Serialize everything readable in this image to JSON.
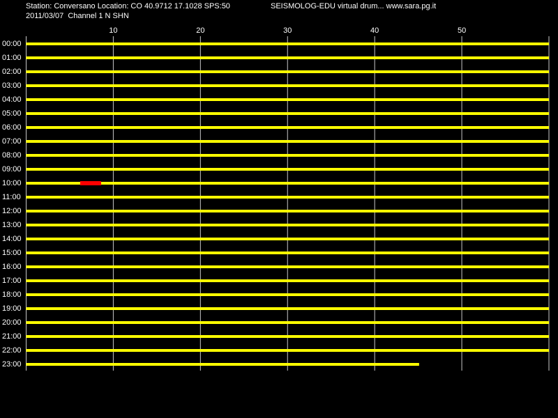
{
  "chart_data": {
    "type": "helicorder",
    "title": "Station: Conversano Location: CO 40.9712 17.1028 SPS:50",
    "subtitle": "SEISMOLOG-EDU virtual drum... www.sara.pg.it",
    "caption": "2011/03/07  Channel 1 N SHN",
    "categories": [
      "00:00",
      "01:00",
      "02:00",
      "03:00",
      "04:00",
      "05:00",
      "06:00",
      "07:00",
      "08:00",
      "09:00",
      "10:00",
      "11:00",
      "12:00",
      "13:00",
      "14:00",
      "15:00",
      "16:00",
      "17:00",
      "18:00",
      "19:00",
      "20:00",
      "21:00",
      "22:00",
      "23:00"
    ],
    "values": [
      60,
      60,
      60,
      60,
      60,
      60,
      60,
      60,
      60,
      60,
      60,
      60,
      60,
      60,
      60,
      60,
      60,
      60,
      60,
      60,
      60,
      60,
      60,
      45.1
    ],
    "color": "#ffff00",
    "xlim": [
      0,
      60
    ],
    "xticks": [
      10,
      20,
      30,
      40,
      50
    ],
    "grid": true,
    "events": [
      {
        "row": "10:00",
        "start": 6.2,
        "end": 8.6,
        "color": "#ff0000"
      }
    ]
  }
}
